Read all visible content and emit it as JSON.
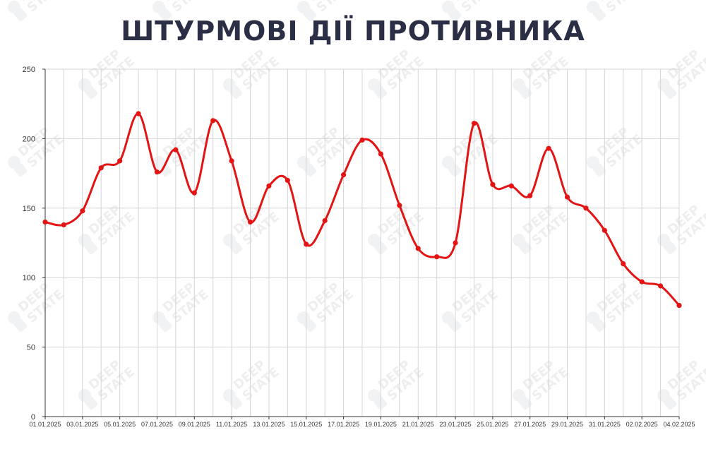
{
  "watermark": {
    "text_top": "DEEP",
    "text_bottom": "STATE"
  },
  "colors": {
    "line": "#e31414",
    "grid": "#d4d4d4",
    "axis": "#333333",
    "title": "#2b2f45"
  },
  "chart_data": {
    "type": "line",
    "title": "ШТУРМОВІ ДІЇ ПРОТИВНИКА",
    "xlabel": "",
    "ylabel": "",
    "ylim": [
      0,
      250
    ],
    "yticks": [
      0,
      50,
      100,
      150,
      200,
      250
    ],
    "grid": true,
    "legend": "none",
    "x": [
      "01.01.2025",
      "02.01.2025",
      "03.01.2025",
      "04.01.2025",
      "05.01.2025",
      "06.01.2025",
      "07.01.2025",
      "08.01.2025",
      "09.01.2025",
      "10.01.2025",
      "11.01.2025",
      "12.01.2025",
      "13.01.2025",
      "14.01.2025",
      "15.01.2025",
      "16.01.2025",
      "17.01.2025",
      "18.01.2025",
      "19.01.2025",
      "20.01.2025",
      "21.01.2025",
      "22.01.2025",
      "23.01.2025",
      "24.01.2025",
      "25.01.2025",
      "26.01.2025",
      "27.01.2025",
      "28.01.2025",
      "29.01.2025",
      "30.01.2025",
      "31.01.2025",
      "01.02.2025",
      "02.02.2025",
      "03.02.2025",
      "04.02.2025"
    ],
    "xtick_labels": [
      "01.01.2025",
      "03.01.2025",
      "05.01.2025",
      "07.01.2025",
      "09.01.2025",
      "11.01.2025",
      "13.01.2025",
      "15.01.2025",
      "17.01.2025",
      "19.01.2025",
      "21.01.2025",
      "23.01.2025",
      "25.01.2025",
      "27.01.2025",
      "29.01.2025",
      "31.01.2025",
      "02.02.2025",
      "04.02.2025"
    ],
    "series": [
      {
        "values": [
          140,
          138,
          148,
          179,
          184,
          218,
          176,
          192,
          161,
          213,
          184,
          140,
          166,
          170,
          124,
          141,
          174,
          199,
          189,
          152,
          121,
          115,
          125,
          211,
          167,
          166,
          159,
          193,
          158,
          150,
          134,
          110,
          97,
          94,
          80
        ]
      }
    ]
  }
}
